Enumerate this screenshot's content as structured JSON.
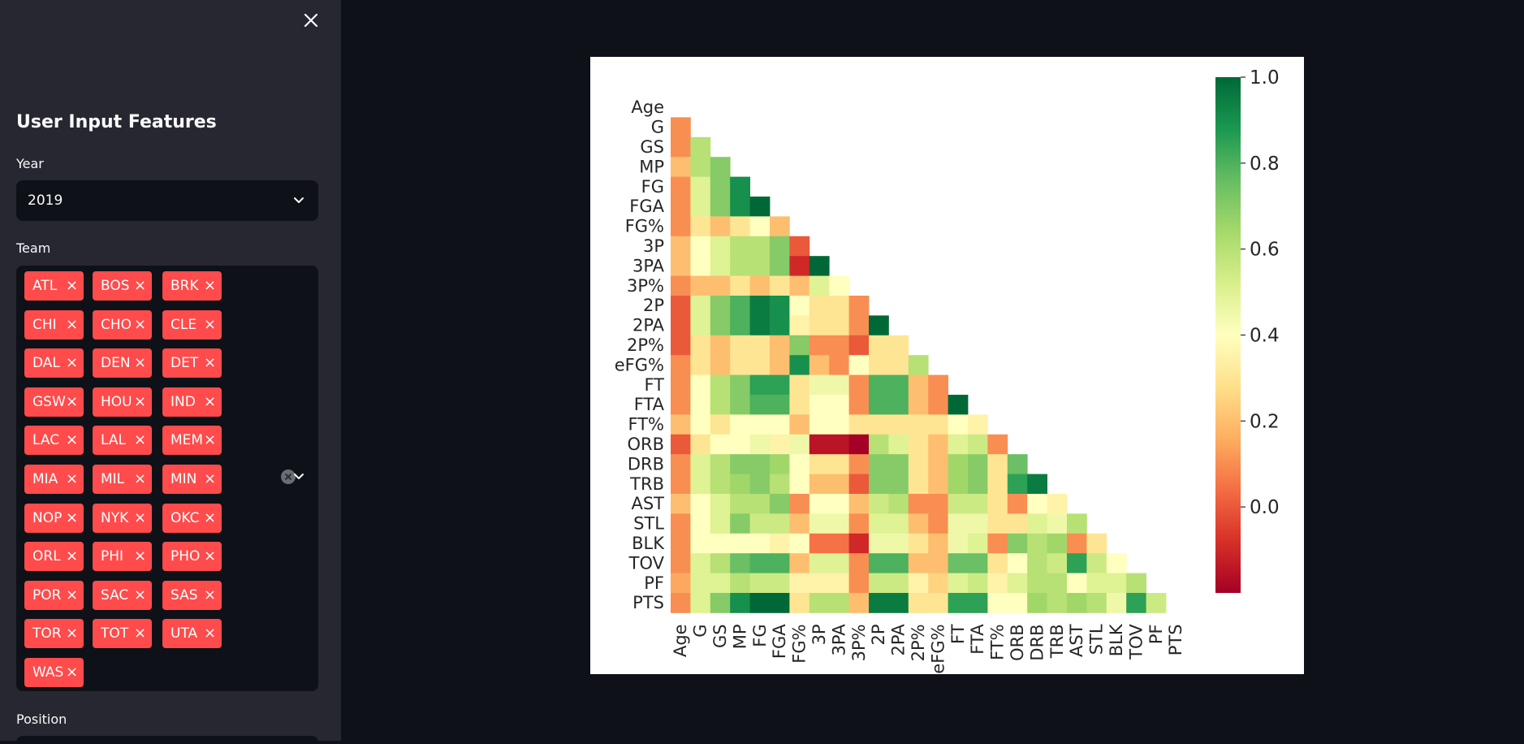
{
  "sidebar": {
    "title": "User Input Features",
    "year_label": "Year",
    "year_value": "2019",
    "team_label": "Team",
    "teams": [
      "ATL",
      "BOS",
      "BRK",
      "CHI",
      "CHO",
      "CLE",
      "DAL",
      "DEN",
      "DET",
      "GSW",
      "HOU",
      "IND",
      "LAC",
      "LAL",
      "MEM",
      "MIA",
      "MIL",
      "MIN",
      "NOP",
      "NYK",
      "OKC",
      "ORL",
      "PHI",
      "PHO",
      "POR",
      "SAC",
      "SAS",
      "TOR",
      "TOT",
      "UTA",
      "WAS"
    ],
    "position_label": "Position",
    "icons": {
      "close": "close-icon",
      "chevron": "chevron-down-icon",
      "clear": "clear-all-icon",
      "chip_remove": "remove-icon"
    }
  },
  "colors": {
    "sidebar_bg": "#262730",
    "main_bg": "#0e1117",
    "chip": "#ff4b4b"
  },
  "chart_data": {
    "type": "heatmap",
    "title": "",
    "colormap": "RdYlGn",
    "mask": "upper-triangle",
    "labels": [
      "Age",
      "G",
      "GS",
      "MP",
      "FG",
      "FGA",
      "FG%",
      "3P",
      "3PA",
      "3P%",
      "2P",
      "2PA",
      "2P%",
      "eFG%",
      "FT",
      "FTA",
      "FT%",
      "ORB",
      "DRB",
      "TRB",
      "AST",
      "STL",
      "BLK",
      "TOV",
      "PF",
      "PTS"
    ],
    "colorbar": {
      "ticks": [
        "1.0",
        "0.8",
        "0.6",
        "0.4",
        "0.2",
        "0.0"
      ],
      "min": -0.2,
      "max": 1.0,
      "position": "right"
    },
    "values": [
      [],
      [
        0.1
      ],
      [
        0.1,
        0.6
      ],
      [
        0.2,
        0.6,
        0.7
      ],
      [
        0.1,
        0.5,
        0.7,
        0.9
      ],
      [
        0.1,
        0.5,
        0.7,
        0.9,
        1.0
      ],
      [
        0.1,
        0.3,
        0.2,
        0.3,
        0.4,
        0.2
      ],
      [
        0.2,
        0.4,
        0.5,
        0.6,
        0.6,
        0.7,
        0.0
      ],
      [
        0.2,
        0.4,
        0.5,
        0.6,
        0.6,
        0.7,
        -0.1,
        1.0
      ],
      [
        0.1,
        0.2,
        0.2,
        0.3,
        0.2,
        0.3,
        0.2,
        0.5,
        0.4
      ],
      [
        0.0,
        0.5,
        0.7,
        0.8,
        0.95,
        0.9,
        0.4,
        0.3,
        0.3,
        0.1
      ],
      [
        0.0,
        0.5,
        0.7,
        0.8,
        0.95,
        0.9,
        0.35,
        0.3,
        0.3,
        0.1,
        1.0
      ],
      [
        0.0,
        0.3,
        0.2,
        0.3,
        0.3,
        0.2,
        0.7,
        0.1,
        0.1,
        0.0,
        0.3,
        0.3
      ],
      [
        0.1,
        0.3,
        0.2,
        0.3,
        0.3,
        0.2,
        0.9,
        0.2,
        0.1,
        0.4,
        0.3,
        0.3,
        0.6
      ],
      [
        0.1,
        0.4,
        0.6,
        0.7,
        0.85,
        0.85,
        0.3,
        0.45,
        0.45,
        0.1,
        0.8,
        0.8,
        0.2,
        0.1
      ],
      [
        0.1,
        0.4,
        0.6,
        0.7,
        0.8,
        0.8,
        0.3,
        0.4,
        0.4,
        0.1,
        0.8,
        0.8,
        0.2,
        0.1,
        1.0
      ],
      [
        0.2,
        0.4,
        0.3,
        0.4,
        0.4,
        0.4,
        0.2,
        0.4,
        0.4,
        0.3,
        0.3,
        0.3,
        0.3,
        0.3,
        0.4,
        0.35
      ],
      [
        0.0,
        0.3,
        0.4,
        0.4,
        0.45,
        0.35,
        0.45,
        -0.15,
        -0.15,
        -0.2,
        0.6,
        0.5,
        0.3,
        0.2,
        0.5,
        0.55,
        0.1
      ],
      [
        0.1,
        0.5,
        0.6,
        0.7,
        0.7,
        0.65,
        0.4,
        0.3,
        0.3,
        0.1,
        0.7,
        0.7,
        0.3,
        0.2,
        0.65,
        0.7,
        0.3,
        0.75
      ],
      [
        0.1,
        0.5,
        0.6,
        0.65,
        0.7,
        0.6,
        0.4,
        0.2,
        0.2,
        0.0,
        0.7,
        0.7,
        0.3,
        0.2,
        0.65,
        0.7,
        0.3,
        0.85,
        0.95
      ],
      [
        0.2,
        0.4,
        0.5,
        0.6,
        0.6,
        0.7,
        0.1,
        0.4,
        0.4,
        0.2,
        0.55,
        0.6,
        0.1,
        0.1,
        0.55,
        0.55,
        0.3,
        0.1,
        0.4,
        0.35
      ],
      [
        0.1,
        0.4,
        0.5,
        0.7,
        0.55,
        0.55,
        0.2,
        0.45,
        0.45,
        0.1,
        0.5,
        0.5,
        0.2,
        0.1,
        0.45,
        0.45,
        0.3,
        0.3,
        0.5,
        0.45,
        0.6
      ],
      [
        0.1,
        0.4,
        0.4,
        0.4,
        0.4,
        0.35,
        0.4,
        0.05,
        0.05,
        -0.1,
        0.45,
        0.45,
        0.3,
        0.2,
        0.45,
        0.5,
        0.1,
        0.7,
        0.6,
        0.65,
        0.1,
        0.3
      ],
      [
        0.1,
        0.5,
        0.6,
        0.75,
        0.8,
        0.8,
        0.2,
        0.5,
        0.5,
        0.1,
        0.8,
        0.8,
        0.2,
        0.2,
        0.75,
        0.75,
        0.3,
        0.4,
        0.6,
        0.55,
        0.85,
        0.55,
        0.4
      ],
      [
        0.15,
        0.5,
        0.5,
        0.6,
        0.55,
        0.55,
        0.35,
        0.35,
        0.35,
        0.1,
        0.55,
        0.55,
        0.35,
        0.25,
        0.5,
        0.55,
        0.35,
        0.5,
        0.6,
        0.6,
        0.4,
        0.5,
        0.5,
        0.6
      ],
      [
        0.1,
        0.5,
        0.7,
        0.9,
        1.0,
        1.0,
        0.3,
        0.6,
        0.6,
        0.2,
        0.95,
        0.95,
        0.3,
        0.3,
        0.85,
        0.85,
        0.4,
        0.4,
        0.65,
        0.6,
        0.65,
        0.6,
        0.45,
        0.85,
        0.55
      ]
    ]
  }
}
